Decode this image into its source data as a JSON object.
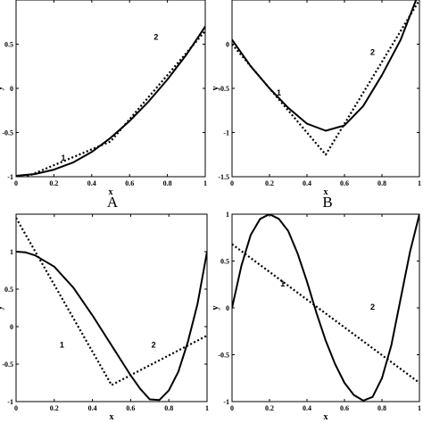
{
  "chart_data": [
    {
      "type": "line",
      "panel_label": "A",
      "xlabel": "x",
      "ylabel": "y",
      "xlim": [
        0,
        1
      ],
      "ylim": [
        -1,
        1
      ],
      "xticks": [
        "0",
        "0.2",
        "0.4",
        "0.6",
        "0.8",
        "1"
      ],
      "yticks": [
        "-1",
        "-0.5",
        "0",
        "0.5"
      ],
      "series": [
        {
          "label": "1",
          "style": "solid",
          "x": [
            0,
            0.1,
            0.2,
            0.3,
            0.4,
            0.5,
            0.6,
            0.7,
            0.8,
            0.9,
            1.0
          ],
          "y": [
            -0.99,
            -0.97,
            -0.92,
            -0.84,
            -0.72,
            -0.56,
            -0.37,
            -0.15,
            0.1,
            0.38,
            0.7
          ]
        },
        {
          "label": "2",
          "style": "dotted",
          "x": [
            0,
            0.5,
            1.0
          ],
          "y": [
            -1.05,
            -0.6,
            0.65
          ]
        }
      ]
    },
    {
      "type": "line",
      "panel_label": "B",
      "xlabel": "x",
      "ylabel": "y",
      "xlim": [
        0,
        1
      ],
      "ylim": [
        -1.5,
        0.5
      ],
      "xticks": [
        "0",
        "0.2",
        "0.4",
        "0.6",
        "0.8",
        "1"
      ],
      "yticks": [
        "-1.5",
        "-1",
        "-0.5",
        "0"
      ],
      "series": [
        {
          "label": "1",
          "style": "solid",
          "x": [
            0,
            0.1,
            0.2,
            0.3,
            0.4,
            0.5,
            0.6,
            0.7,
            0.8,
            0.9,
            1.0
          ],
          "y": [
            0.05,
            -0.25,
            -0.5,
            -0.72,
            -0.9,
            -0.98,
            -0.92,
            -0.7,
            -0.35,
            0.05,
            0.6
          ]
        },
        {
          "label": "2",
          "style": "dotted",
          "x": [
            0,
            0.5,
            1.0
          ],
          "y": [
            0.0,
            -1.25,
            0.5
          ]
        }
      ]
    },
    {
      "type": "line",
      "xlabel": "x",
      "ylabel": "y",
      "xlim": [
        0,
        1
      ],
      "ylim": [
        -1,
        1.5
      ],
      "xticks": [
        "0",
        "0.2",
        "0.4",
        "0.6",
        "0.8",
        "1"
      ],
      "yticks": [
        "-1",
        "-0.5",
        "0",
        "0.5",
        "1"
      ],
      "series": [
        {
          "label": "1",
          "style": "solid",
          "x": [
            0,
            0.05,
            0.1,
            0.2,
            0.3,
            0.4,
            0.5,
            0.6,
            0.65,
            0.7,
            0.75,
            0.8,
            0.85,
            0.9,
            0.95,
            1.0
          ],
          "y": [
            1.0,
            0.99,
            0.95,
            0.8,
            0.52,
            0.15,
            -0.25,
            -0.65,
            -0.83,
            -0.97,
            -0.98,
            -0.85,
            -0.6,
            -0.2,
            0.3,
            1.0
          ]
        },
        {
          "label": "2",
          "style": "dotted",
          "x": [
            0,
            0.5,
            1.0
          ],
          "y": [
            1.45,
            -0.78,
            -0.12
          ]
        }
      ]
    },
    {
      "type": "line",
      "xlabel": "x",
      "ylabel": "y",
      "xlim": [
        0,
        1
      ],
      "ylim": [
        -1,
        1
      ],
      "xticks": [
        "0",
        "0.2",
        "0.4",
        "0.6",
        "0.8",
        "1"
      ],
      "yticks": [
        "-1",
        "-0.5",
        "0",
        "0.5",
        "1"
      ],
      "series": [
        {
          "label": "1",
          "style": "dotted",
          "x": [
            0,
            1.0
          ],
          "y": [
            0.68,
            -0.8
          ]
        },
        {
          "label": "2",
          "style": "solid",
          "x": [
            0,
            0.05,
            0.1,
            0.15,
            0.2,
            0.25,
            0.3,
            0.35,
            0.4,
            0.45,
            0.5,
            0.55,
            0.6,
            0.65,
            0.7,
            0.75,
            0.8,
            0.85,
            0.9,
            0.95,
            1.0
          ],
          "y": [
            0,
            0.45,
            0.78,
            0.95,
            1.0,
            0.95,
            0.82,
            0.58,
            0.28,
            -0.05,
            -0.35,
            -0.6,
            -0.8,
            -0.93,
            -0.99,
            -0.95,
            -0.75,
            -0.4,
            0.1,
            0.6,
            1.0
          ]
        }
      ]
    }
  ]
}
